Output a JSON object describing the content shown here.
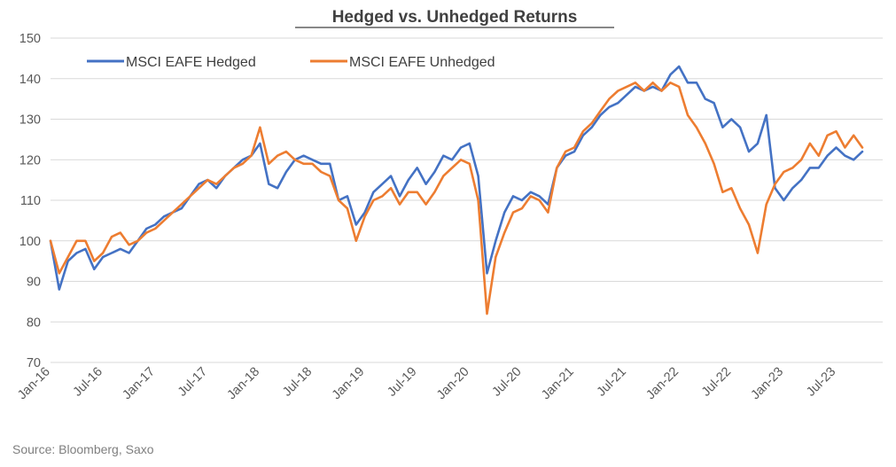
{
  "chart_data": {
    "type": "line",
    "title": "Hedged vs. Unhedged Returns",
    "source": "Source: Bloomberg, Saxo",
    "xlabel": "",
    "ylabel": "",
    "ylim": [
      70,
      150
    ],
    "yticks": [
      70,
      80,
      90,
      100,
      110,
      120,
      130,
      140,
      150
    ],
    "xticks": [
      "Jan-16",
      "Jul-16",
      "Jan-17",
      "Jul-17",
      "Jan-18",
      "Jul-18",
      "Jan-19",
      "Jul-19",
      "Jan-20",
      "Jul-20",
      "Jan-21",
      "Jul-21",
      "Jan-22",
      "Jul-22",
      "Jan-23",
      "Jul-23"
    ],
    "grid": true,
    "legend_position": "top-left",
    "x": [
      "2016-01",
      "2016-02",
      "2016-03",
      "2016-04",
      "2016-05",
      "2016-06",
      "2016-07",
      "2016-08",
      "2016-09",
      "2016-10",
      "2016-11",
      "2016-12",
      "2017-01",
      "2017-02",
      "2017-03",
      "2017-04",
      "2017-05",
      "2017-06",
      "2017-07",
      "2017-08",
      "2017-09",
      "2017-10",
      "2017-11",
      "2017-12",
      "2018-01",
      "2018-02",
      "2018-03",
      "2018-04",
      "2018-05",
      "2018-06",
      "2018-07",
      "2018-08",
      "2018-09",
      "2018-10",
      "2018-11",
      "2018-12",
      "2019-01",
      "2019-02",
      "2019-03",
      "2019-04",
      "2019-05",
      "2019-06",
      "2019-07",
      "2019-08",
      "2019-09",
      "2019-10",
      "2019-11",
      "2019-12",
      "2020-01",
      "2020-02",
      "2020-03",
      "2020-04",
      "2020-05",
      "2020-06",
      "2020-07",
      "2020-08",
      "2020-09",
      "2020-10",
      "2020-11",
      "2020-12",
      "2021-01",
      "2021-02",
      "2021-03",
      "2021-04",
      "2021-05",
      "2021-06",
      "2021-07",
      "2021-08",
      "2021-09",
      "2021-10",
      "2021-11",
      "2021-12",
      "2022-01",
      "2022-02",
      "2022-03",
      "2022-04",
      "2022-05",
      "2022-06",
      "2022-07",
      "2022-08",
      "2022-09",
      "2022-10",
      "2022-11",
      "2022-12",
      "2023-01",
      "2023-02",
      "2023-03",
      "2023-04",
      "2023-05",
      "2023-06",
      "2023-07",
      "2023-08",
      "2023-09",
      "2023-10"
    ],
    "series": [
      {
        "name": "MSCI EAFE Hedged",
        "color": "#4472C4",
        "values": [
          100,
          88,
          95,
          97,
          98,
          93,
          96,
          97,
          98,
          97,
          100,
          103,
          104,
          106,
          107,
          108,
          111,
          114,
          115,
          113,
          116,
          118,
          120,
          121,
          124,
          114,
          113,
          117,
          120,
          121,
          120,
          119,
          119,
          110,
          111,
          104,
          107,
          112,
          114,
          116,
          111,
          115,
          118,
          114,
          117,
          121,
          120,
          123,
          124,
          116,
          92,
          100,
          107,
          111,
          110,
          112,
          111,
          109,
          118,
          121,
          122,
          126,
          128,
          131,
          133,
          134,
          136,
          138,
          137,
          138,
          137,
          141,
          143,
          139,
          139,
          135,
          134,
          128,
          130,
          128,
          122,
          124,
          131,
          113,
          110,
          113,
          115,
          118,
          118,
          121,
          123,
          121,
          120,
          122
        ]
      },
      {
        "name": "MSCI EAFE Unhedged",
        "color": "#ED7D31",
        "values": [
          100,
          92,
          96,
          100,
          100,
          95,
          97,
          101,
          102,
          99,
          100,
          102,
          103,
          105,
          107,
          109,
          111,
          113,
          115,
          114,
          116,
          118,
          119,
          121,
          128,
          119,
          121,
          122,
          120,
          119,
          119,
          117,
          116,
          110,
          108,
          100,
          106,
          110,
          111,
          113,
          109,
          112,
          112,
          109,
          112,
          116,
          118,
          120,
          119,
          110,
          82,
          96,
          102,
          107,
          108,
          111,
          110,
          107,
          118,
          122,
          123,
          127,
          129,
          132,
          135,
          137,
          138,
          139,
          137,
          139,
          137,
          139,
          138,
          131,
          128,
          124,
          119,
          112,
          113,
          108,
          104,
          97,
          109,
          114,
          117,
          118,
          120,
          124,
          121,
          126,
          127,
          123,
          126,
          123
        ]
      }
    ]
  }
}
